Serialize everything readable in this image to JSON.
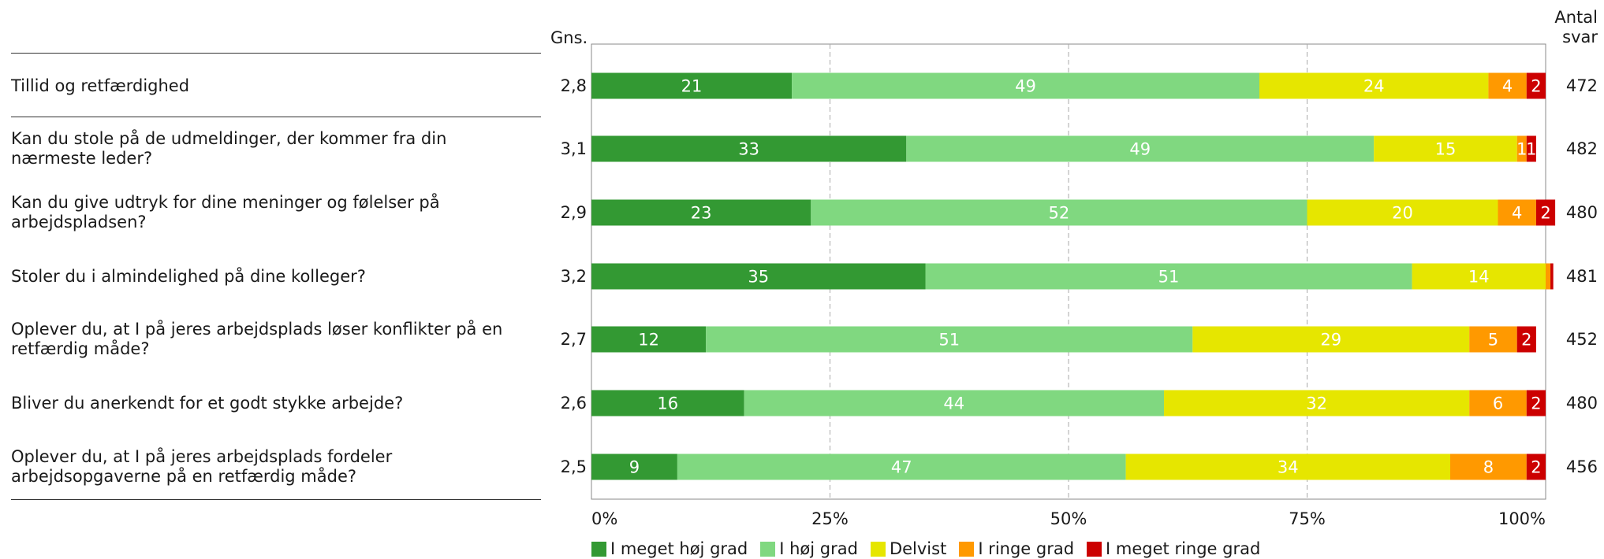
{
  "chart_data": {
    "type": "bar",
    "orientation": "horizontal",
    "stacked": true,
    "percent": true,
    "header_avg": "Gns.",
    "header_count": "Antal\nsvar",
    "categories": [
      "Tillid og retfærdighed",
      "Kan du stole på de udmeldinger, der kommer fra din nærmeste leder?",
      "Kan du give udtryk for dine meninger og følelser på arbejdspladsen?",
      "Stoler du i almindelighed på dine kolleger?",
      "Oplever du, at I på jeres arbejdsplads løser konflikter på en retfærdig måde?",
      "Bliver du anerkendt for et godt stykke arbejde?",
      "Oplever du, at I på jeres arbejdsplads fordeler arbejdsopgaverne på en retfærdig måde?"
    ],
    "label_lines": [
      [
        "Tillid og retfærdighed"
      ],
      [
        "Kan du stole på de udmeldinger, der kommer fra din",
        "nærmeste leder?"
      ],
      [
        "Kan du give udtryk for dine meninger og følelser på",
        "arbejdspladsen?"
      ],
      [
        "Stoler du i almindelighed på dine kolleger?"
      ],
      [
        "Oplever du, at I på jeres arbejdsplads løser konflikter på en",
        "retfærdig måde?"
      ],
      [
        "Bliver du anerkendt for et godt stykke arbejde?"
      ],
      [
        "Oplever du, at I på jeres arbejdsplads fordeler",
        "arbejdsopgaverne på en retfærdig måde?"
      ]
    ],
    "averages": [
      "2,8",
      "3,1",
      "2,9",
      "3,2",
      "2,7",
      "2,6",
      "2,5"
    ],
    "counts": [
      "472",
      "482",
      "480",
      "481",
      "452",
      "480",
      "456"
    ],
    "series": [
      {
        "name": "I meget høj grad",
        "color": "#339933",
        "values": [
          21,
          33,
          23,
          35,
          12,
          16,
          9
        ]
      },
      {
        "name": "I høj grad",
        "color": "#80d880",
        "values": [
          49,
          49,
          52,
          51,
          51,
          44,
          47
        ]
      },
      {
        "name": "Delvist",
        "color": "#e6e600",
        "values": [
          24,
          15,
          20,
          14,
          29,
          32,
          34
        ]
      },
      {
        "name": "I ringe grad",
        "color": "#ff9900",
        "values": [
          4,
          1,
          4,
          0.5,
          5,
          6,
          8
        ]
      },
      {
        "name": "I meget ringe grad",
        "color": "#cc0000",
        "values": [
          2,
          1,
          2,
          0.3,
          2,
          2,
          2
        ]
      }
    ],
    "value_labels": [
      [
        "21",
        "49",
        "24",
        "4",
        "2"
      ],
      [
        "33",
        "49",
        "15",
        "1",
        "1"
      ],
      [
        "23",
        "52",
        "20",
        "4",
        "2"
      ],
      [
        "35",
        "51",
        "14",
        "",
        ""
      ],
      [
        "12",
        "51",
        "29",
        "5",
        "2"
      ],
      [
        "16",
        "44",
        "32",
        "6",
        "2"
      ],
      [
        "9",
        "47",
        "34",
        "8",
        "2"
      ]
    ],
    "x_ticks": [
      "0%",
      "25%",
      "50%",
      "75%",
      "100%"
    ],
    "xlim": [
      0,
      100
    ],
    "grid": "vertical dashed",
    "legend_position": "bottom"
  }
}
